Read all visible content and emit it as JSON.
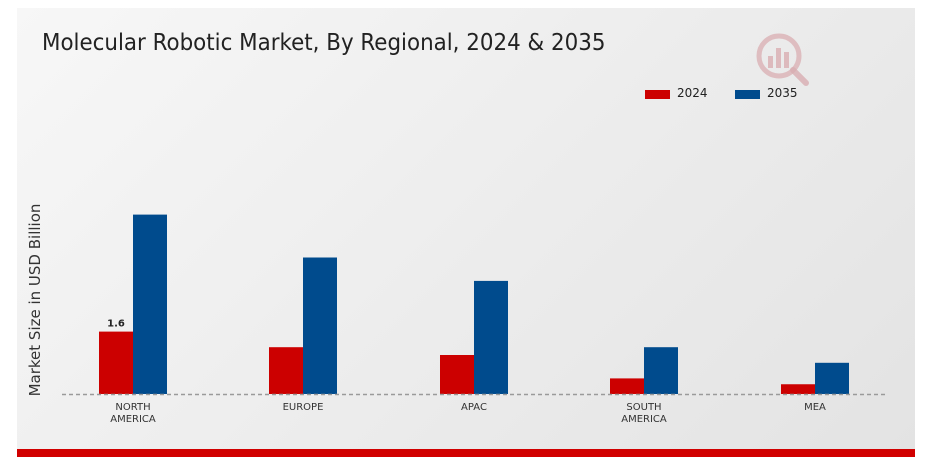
{
  "chart_data": {
    "type": "bar",
    "title": "Molecular Robotic Market, By Regional, 2024 & 2035",
    "xlabel": "",
    "ylabel": "Market Size in USD Billion",
    "categories": [
      "NORTH\nAMERICA",
      "EUROPE",
      "APAC",
      "SOUTH\nAMERICA",
      "MEA"
    ],
    "series": [
      {
        "name": "2024",
        "color": "#cc0000",
        "values": [
          1.6,
          1.2,
          1.0,
          0.4,
          0.25
        ]
      },
      {
        "name": "2035",
        "color": "#004b8d",
        "values": [
          4.6,
          3.5,
          2.9,
          1.2,
          0.8
        ]
      }
    ],
    "data_labels": [
      {
        "series": 0,
        "index": 0,
        "text": "1.6"
      }
    ],
    "ylim": [
      0,
      6.0
    ],
    "grid": false,
    "legend_position": "top-right",
    "baseline": "dashed"
  },
  "brand": {
    "accent_color": "#d10000"
  }
}
